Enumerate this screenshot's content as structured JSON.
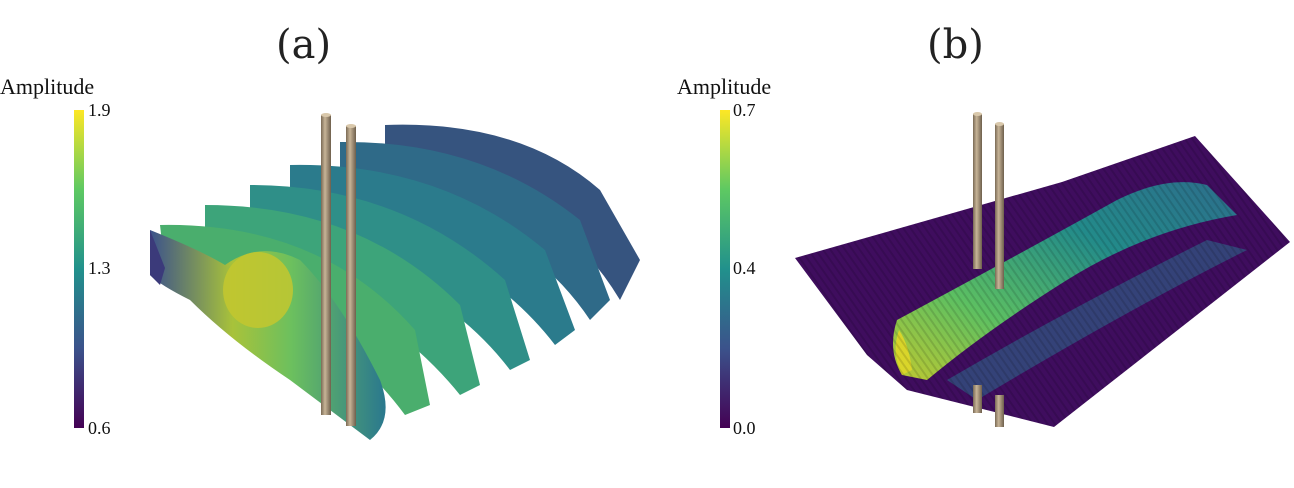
{
  "panels": [
    {
      "label": "(a)",
      "colorbar": {
        "title": "Amplitude",
        "max": "1.9",
        "mid": "1.3",
        "min": "0.6"
      }
    },
    {
      "label": "(b)",
      "colorbar": {
        "title": "Amplitude",
        "max": "0.7",
        "mid": "0.4",
        "min": "0.0"
      }
    }
  ],
  "colors": {
    "viridis_low": "#440154",
    "viridis_mid": "#21918c",
    "viridis_high": "#fde725",
    "cylinder": "#a08c70"
  }
}
